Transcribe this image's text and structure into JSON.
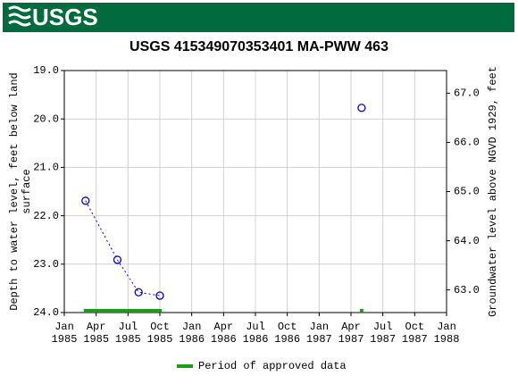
{
  "header": {
    "logo": "USGS"
  },
  "chart_data": {
    "type": "line",
    "title": "USGS 415349070353401 MA-PWW  463",
    "ylabel": [
      "Depth to water level, feet below land",
      "surface"
    ],
    "y2label": "Groundwater level above NGVD 1929, feet",
    "x": [
      "1985-03",
      "1985-06",
      "1985-08",
      "1985-10",
      "1987-05"
    ],
    "series": [
      {
        "name": "Depth to water level",
        "color": "#0000cc",
        "values": [
          21.69,
          22.91,
          23.58,
          23.65,
          19.77
        ]
      }
    ],
    "xlim": [
      "1985-01",
      "1988-01"
    ],
    "xticks": [
      {
        "value": "1985-01",
        "label": [
          "Jan",
          "1985"
        ]
      },
      {
        "value": "1985-04",
        "label": [
          "Apr",
          "1985"
        ]
      },
      {
        "value": "1985-07",
        "label": [
          "Jul",
          "1985"
        ]
      },
      {
        "value": "1985-10",
        "label": [
          "Oct",
          "1985"
        ]
      },
      {
        "value": "1986-01",
        "label": [
          "Jan",
          "1986"
        ]
      },
      {
        "value": "1986-04",
        "label": [
          "Apr",
          "1986"
        ]
      },
      {
        "value": "1986-07",
        "label": [
          "Jul",
          "1986"
        ]
      },
      {
        "value": "1986-10",
        "label": [
          "Oct",
          "1986"
        ]
      },
      {
        "value": "1987-01",
        "label": [
          "Jan",
          "1987"
        ]
      },
      {
        "value": "1987-04",
        "label": [
          "Apr",
          "1987"
        ]
      },
      {
        "value": "1987-07",
        "label": [
          "Jul",
          "1987"
        ]
      },
      {
        "value": "1987-10",
        "label": [
          "Oct",
          "1987"
        ]
      },
      {
        "value": "1988-01",
        "label": [
          "Jan",
          "1988"
        ]
      }
    ],
    "ylim": [
      24,
      19
    ],
    "yticks": [
      {
        "value": 19,
        "label": "19.0"
      },
      {
        "value": 20,
        "label": "20.0"
      },
      {
        "value": 21,
        "label": "21.0"
      },
      {
        "value": 22,
        "label": "22.0"
      },
      {
        "value": 23,
        "label": "23.0"
      },
      {
        "value": 24,
        "label": "24.0"
      }
    ],
    "y2lim": [
      62.54,
      67.46
    ],
    "y2ticks": [
      {
        "value": 63,
        "label": "63.0"
      },
      {
        "value": 64,
        "label": "64.0"
      },
      {
        "value": 65,
        "label": "65.0"
      },
      {
        "value": 66,
        "label": "66.0"
      },
      {
        "value": 67,
        "label": "67.0"
      }
    ],
    "grid": true,
    "approved": {
      "name": "Period of approved data",
      "color": "#1a9c1a",
      "periods": [
        {
          "start": "1985-03",
          "end": "1985-10"
        },
        {
          "start": "1987-05",
          "end": "1987-05"
        }
      ]
    }
  }
}
